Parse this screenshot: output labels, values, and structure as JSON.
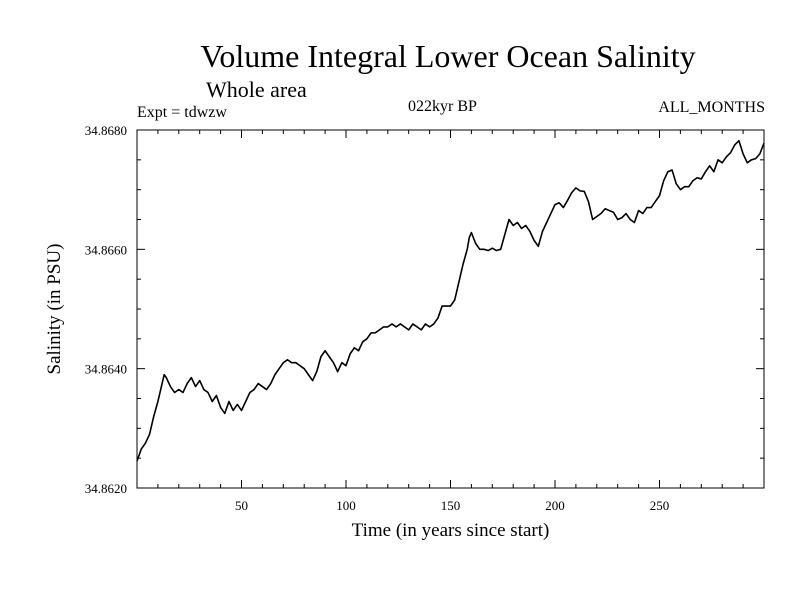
{
  "chart_data": {
    "type": "line",
    "title": "Volume Integral Lower Ocean Salinity",
    "subtitle": "Whole area",
    "annotations": {
      "left": "Expt = tdwzw",
      "center": "022kyr BP",
      "right": "ALL_MONTHS"
    },
    "xlabel": "Time (in years since start)",
    "ylabel": "Salinity (in PSU)",
    "xlim": [
      0,
      300
    ],
    "ylim": [
      34.862,
      34.868
    ],
    "xticks": [
      50,
      100,
      150,
      200,
      250
    ],
    "xtick_labels": [
      "50",
      "100",
      "150",
      "200",
      "250"
    ],
    "yticks": [
      34.862,
      34.864,
      34.866,
      34.868
    ],
    "ytick_labels": [
      "34.8620",
      "34.8640",
      "34.8660",
      "34.8680"
    ],
    "grid": false,
    "series": [
      {
        "x": [
          0,
          2,
          4,
          6,
          8,
          10,
          11,
          12,
          13,
          14,
          16,
          18,
          20,
          22,
          24,
          26,
          28,
          30,
          32,
          34,
          36,
          38,
          40,
          42,
          44,
          46,
          48,
          50,
          52,
          54,
          56,
          58,
          60,
          62,
          64,
          66,
          68,
          70,
          72,
          74,
          76,
          78,
          80,
          82,
          84,
          86,
          88,
          90,
          92,
          94,
          96,
          98,
          100,
          102,
          104,
          106,
          108,
          110,
          112,
          114,
          116,
          118,
          120,
          122,
          124,
          126,
          128,
          130,
          132,
          134,
          136,
          138,
          140,
          142,
          144,
          146,
          148,
          150,
          152,
          154,
          156,
          158,
          159,
          160,
          162,
          164,
          166,
          168,
          170,
          172,
          174,
          176,
          178,
          180,
          182,
          184,
          186,
          188,
          190,
          192,
          194,
          196,
          198,
          200,
          202,
          204,
          206,
          208,
          210,
          212,
          214,
          216,
          218,
          220,
          222,
          224,
          226,
          228,
          230,
          232,
          234,
          236,
          238,
          240,
          242,
          244,
          246,
          248,
          250,
          252,
          254,
          256,
          258,
          260,
          262,
          264,
          266,
          268,
          270,
          272,
          274,
          276,
          278,
          280,
          282,
          284,
          286,
          288,
          290,
          292,
          294,
          296,
          298,
          300
        ],
        "values": [
          34.86245,
          34.86265,
          34.86275,
          34.8629,
          34.8632,
          34.86345,
          34.8636,
          34.86375,
          34.8639,
          34.86385,
          34.8637,
          34.8636,
          34.86365,
          34.8636,
          34.86375,
          34.86385,
          34.8637,
          34.8638,
          34.86365,
          34.8636,
          34.86345,
          34.86355,
          34.86335,
          34.86325,
          34.86345,
          34.8633,
          34.8634,
          34.8633,
          34.86345,
          34.8636,
          34.86365,
          34.86375,
          34.8637,
          34.86365,
          34.86375,
          34.8639,
          34.864,
          34.8641,
          34.86415,
          34.8641,
          34.8641,
          34.86405,
          34.864,
          34.8639,
          34.8638,
          34.86395,
          34.8642,
          34.8643,
          34.8642,
          34.8641,
          34.86395,
          34.8641,
          34.86405,
          34.86425,
          34.86435,
          34.8643,
          34.86445,
          34.8645,
          34.8646,
          34.8646,
          34.86465,
          34.8647,
          34.8647,
          34.86475,
          34.8647,
          34.86475,
          34.8647,
          34.86465,
          34.86475,
          34.8647,
          34.86465,
          34.86475,
          34.8647,
          34.86475,
          34.86485,
          34.86505,
          34.86505,
          34.86505,
          34.86515,
          34.86545,
          34.86575,
          34.866,
          34.8662,
          34.86628,
          34.8661,
          34.866,
          34.866,
          34.86598,
          34.86602,
          34.86598,
          34.866,
          34.86625,
          34.8665,
          34.8664,
          34.86645,
          34.86635,
          34.8664,
          34.8663,
          34.86615,
          34.86605,
          34.8663,
          34.86645,
          34.8666,
          34.86675,
          34.86678,
          34.8667,
          34.86682,
          34.86695,
          34.86703,
          34.86698,
          34.86697,
          34.8668,
          34.8665,
          34.86655,
          34.8666,
          34.86668,
          34.86665,
          34.86662,
          34.8665,
          34.86653,
          34.8666,
          34.8665,
          34.86645,
          34.86665,
          34.8666,
          34.8667,
          34.8667,
          34.8668,
          34.8669,
          34.86715,
          34.8673,
          34.86733,
          34.8671,
          34.867,
          34.86705,
          34.86705,
          34.86715,
          34.8672,
          34.86718,
          34.8673,
          34.8674,
          34.8673,
          34.8675,
          34.86745,
          34.86755,
          34.86762,
          34.86775,
          34.86782,
          34.8676,
          34.86745,
          34.8675,
          34.86752,
          34.8676,
          34.86778
        ]
      }
    ]
  }
}
